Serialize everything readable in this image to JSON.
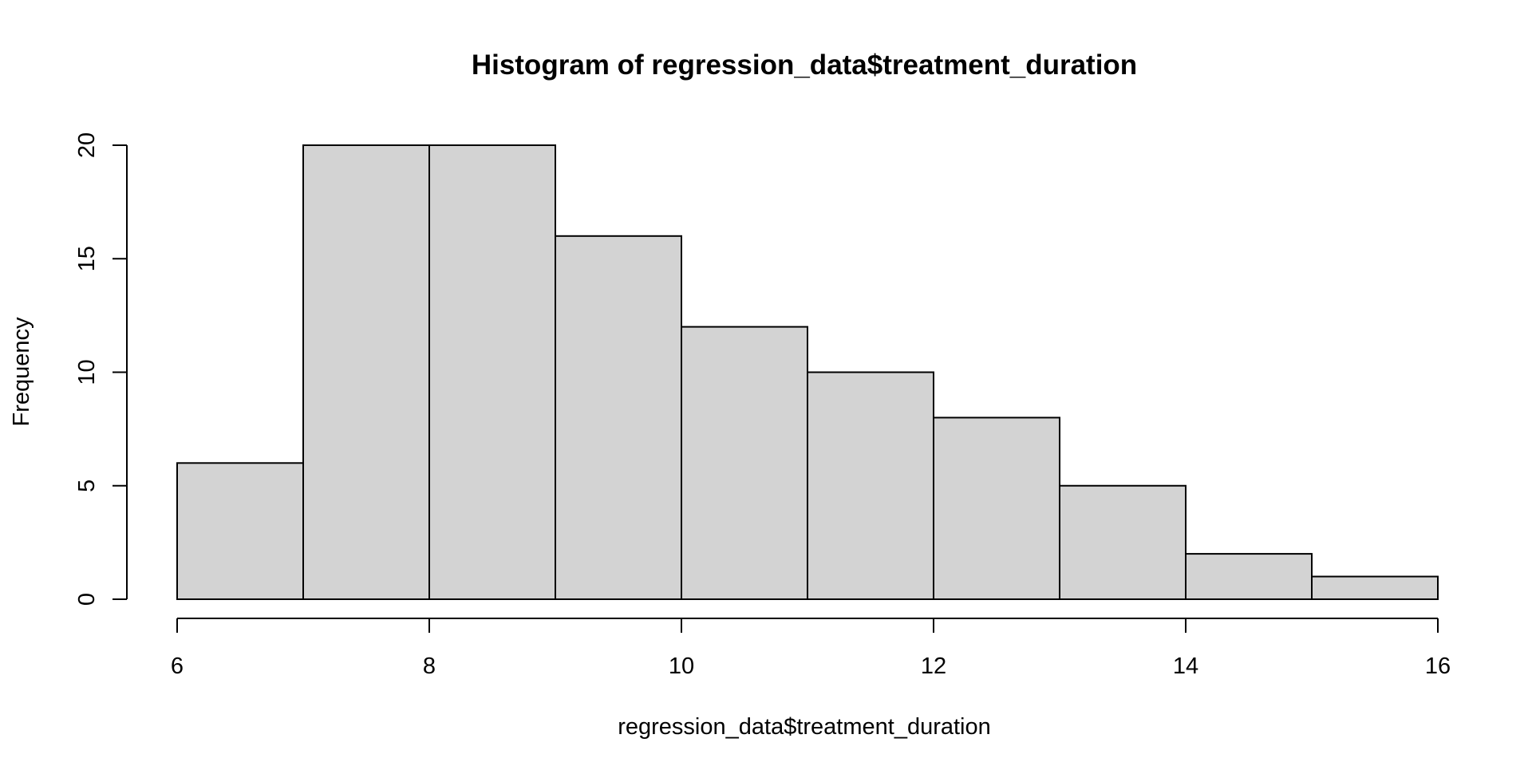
{
  "chart_data": {
    "type": "bar",
    "title": "Histogram of regression_data$treatment_duration",
    "xlabel": "regression_data$treatment_duration",
    "ylabel": "Frequency",
    "bins": [
      {
        "start": 6,
        "end": 7,
        "count": 6
      },
      {
        "start": 7,
        "end": 8,
        "count": 20
      },
      {
        "start": 8,
        "end": 9,
        "count": 20
      },
      {
        "start": 9,
        "end": 10,
        "count": 16
      },
      {
        "start": 10,
        "end": 11,
        "count": 12
      },
      {
        "start": 11,
        "end": 12,
        "count": 10
      },
      {
        "start": 12,
        "end": 13,
        "count": 8
      },
      {
        "start": 13,
        "end": 14,
        "count": 5
      },
      {
        "start": 14,
        "end": 15,
        "count": 2
      },
      {
        "start": 15,
        "end": 16,
        "count": 1
      }
    ],
    "xlim": [
      6,
      16
    ],
    "ylim": [
      0,
      20
    ],
    "x_ticks": [
      "6",
      "8",
      "10",
      "12",
      "14",
      "16"
    ],
    "y_ticks": [
      "0",
      "5",
      "10",
      "15",
      "20"
    ],
    "grid": false,
    "colors": {
      "bar_fill": "#d3d3d3",
      "bar_stroke": "#000000",
      "background": "#ffffff"
    }
  }
}
